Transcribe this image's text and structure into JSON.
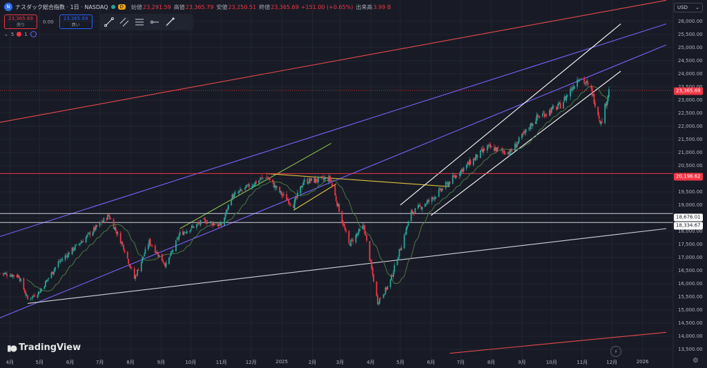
{
  "header": {
    "symbol_icon": "nasdaq-logo-icon",
    "title": "ナスダック総合指数 · 1日 · NASDAQ",
    "interval_badge": "D",
    "open_label": "始値",
    "open": "23,291.59",
    "high_label": "高値",
    "high": "23,365.79",
    "low_label": "安値",
    "low": "23,250.51",
    "close_label": "終値",
    "close": "23,365.69",
    "change": "+151.00 (+0.65%)",
    "volume_label": "出来高",
    "volume": "3.99 B"
  },
  "orders": {
    "sell_price": "23,365.69",
    "sell_label": "売り",
    "spread": "0.00",
    "buy_price": "23,365.69",
    "buy_label": "買い"
  },
  "indicators": {
    "count": "5",
    "badge": "1"
  },
  "currency": "USD",
  "price_badges": {
    "current": "23,365.69",
    "level_20198": "20,198.62",
    "level_18676": "18,676.01",
    "level_18334": "18,334.67"
  },
  "watermark": "TradingView",
  "colors": {
    "up": "#26a69a",
    "down": "#f23645",
    "accent": "#2962ff",
    "ma": "#4c7a45",
    "purple": "#7b61ff",
    "red_trend": "#e84a4a",
    "yellow": "#e3c440",
    "green_trend": "#8bc34a"
  },
  "chart_data": {
    "type": "candlestick",
    "symbol": "NASDAQ Composite",
    "interval": "1D",
    "y_axis": {
      "min": 13000,
      "max": 26600,
      "ticks": [
        13500,
        14000,
        14500,
        15000,
        15500,
        16000,
        16500,
        17000,
        17500,
        18000,
        18500,
        19000,
        19500,
        20000,
        20500,
        21000,
        21500,
        22000,
        22500,
        23000,
        23500,
        24000,
        24500,
        25000,
        25500,
        26000
      ]
    },
    "x_axis": {
      "start": "2024-03-22",
      "end": "2026-02-01",
      "ticks": [
        {
          "label": "4月",
          "date": "2024-04-01"
        },
        {
          "label": "5月",
          "date": "2024-05-01"
        },
        {
          "label": "6月",
          "date": "2024-06-01"
        },
        {
          "label": "7月",
          "date": "2024-07-01"
        },
        {
          "label": "8月",
          "date": "2024-08-01"
        },
        {
          "label": "9月",
          "date": "2024-09-01"
        },
        {
          "label": "10月",
          "date": "2024-10-01"
        },
        {
          "label": "11月",
          "date": "2024-11-01"
        },
        {
          "label": "12月",
          "date": "2024-12-01"
        },
        {
          "label": "2025",
          "date": "2025-01-01"
        },
        {
          "label": "2月",
          "date": "2025-02-01"
        },
        {
          "label": "3月",
          "date": "2025-03-01"
        },
        {
          "label": "4月",
          "date": "2025-04-01"
        },
        {
          "label": "5月",
          "date": "2025-05-01"
        },
        {
          "label": "6月",
          "date": "2025-06-01"
        },
        {
          "label": "7月",
          "date": "2025-07-01"
        },
        {
          "label": "8月",
          "date": "2025-08-01"
        },
        {
          "label": "9月",
          "date": "2025-09-01"
        },
        {
          "label": "10月",
          "date": "2025-10-01"
        },
        {
          "label": "11月",
          "date": "2025-11-01"
        },
        {
          "label": "12月",
          "date": "2025-12-01"
        },
        {
          "label": "2026",
          "date": "2026-01-01"
        }
      ]
    },
    "close_keypoints": [
      [
        "2024-03-22",
        16400
      ],
      [
        "2024-04-10",
        16300
      ],
      [
        "2024-04-19",
        15400
      ],
      [
        "2024-05-01",
        15700
      ],
      [
        "2024-05-20",
        16800
      ],
      [
        "2024-06-15",
        17700
      ],
      [
        "2024-07-10",
        18600
      ],
      [
        "2024-07-25",
        17400
      ],
      [
        "2024-08-05",
        16200
      ],
      [
        "2024-08-20",
        17600
      ],
      [
        "2024-09-06",
        16700
      ],
      [
        "2024-09-20",
        17900
      ],
      [
        "2024-10-15",
        18400
      ],
      [
        "2024-11-01",
        18200
      ],
      [
        "2024-11-11",
        19300
      ],
      [
        "2024-12-16",
        20100
      ],
      [
        "2025-01-01",
        19400
      ],
      [
        "2025-01-13",
        19000
      ],
      [
        "2025-01-23",
        19900
      ],
      [
        "2025-02-19",
        20000
      ],
      [
        "2025-03-10",
        17500
      ],
      [
        "2025-03-25",
        18200
      ],
      [
        "2025-04-08",
        15300
      ],
      [
        "2025-04-20",
        16000
      ],
      [
        "2025-05-12",
        18700
      ],
      [
        "2025-06-01",
        19200
      ],
      [
        "2025-07-01",
        20300
      ],
      [
        "2025-07-28",
        21200
      ],
      [
        "2025-08-20",
        21000
      ],
      [
        "2025-09-15",
        22300
      ],
      [
        "2025-10-10",
        22800
      ],
      [
        "2025-10-29",
        23900
      ],
      [
        "2025-11-10",
        23400
      ],
      [
        "2025-11-20",
        22100
      ],
      [
        "2025-11-28",
        23365.69
      ]
    ],
    "last": {
      "open": 23291.59,
      "high": 23365.79,
      "low": 23250.51,
      "close": 23365.69,
      "change": 151.0,
      "change_pct": 0.65,
      "volume": "3.99B"
    },
    "horizontal_levels": [
      {
        "price": 20198.62,
        "color": "#f23645"
      },
      {
        "price": 18676.01,
        "color": "#d1d4dc"
      },
      {
        "price": 18334.67,
        "color": "#d1d4dc"
      }
    ],
    "trend_lines": [
      {
        "color": "#e84a4a",
        "from": [
          "2024-03-22",
          22150
        ],
        "to": [
          "2026-01-25",
          26800
        ]
      },
      {
        "color": "#e84a4a",
        "from": [
          "2025-06-20",
          13350
        ],
        "to": [
          "2026-01-25",
          14150
        ]
      },
      {
        "color": "#7b61ff",
        "from": [
          "2024-03-22",
          17800
        ],
        "to": [
          "2026-01-25",
          25900
        ]
      },
      {
        "color": "#7b61ff",
        "from": [
          "2024-03-22",
          14700
        ],
        "to": [
          "2026-01-25",
          25100
        ]
      },
      {
        "color": "#d1d4dc",
        "from": [
          "2024-04-19",
          15250
        ],
        "to": [
          "2026-01-25",
          18100
        ]
      },
      {
        "color": "#8bc34a",
        "from": [
          "2024-09-20",
          18100
        ],
        "to": [
          "2025-02-20",
          21350
        ]
      },
      {
        "color": "#e3c440",
        "from": [
          "2024-12-16",
          20200
        ],
        "to": [
          "2025-06-20",
          19700
        ]
      },
      {
        "color": "#e3c440",
        "from": [
          "2025-01-13",
          18800
        ],
        "to": [
          "2025-02-25",
          19800
        ]
      },
      {
        "color": "#ffffff",
        "from": [
          "2025-05-01",
          19000
        ],
        "to": [
          "2025-12-10",
          25900
        ]
      },
      {
        "color": "#ffffff",
        "from": [
          "2025-06-01",
          18600
        ],
        "to": [
          "2025-12-10",
          24100
        ]
      }
    ]
  }
}
